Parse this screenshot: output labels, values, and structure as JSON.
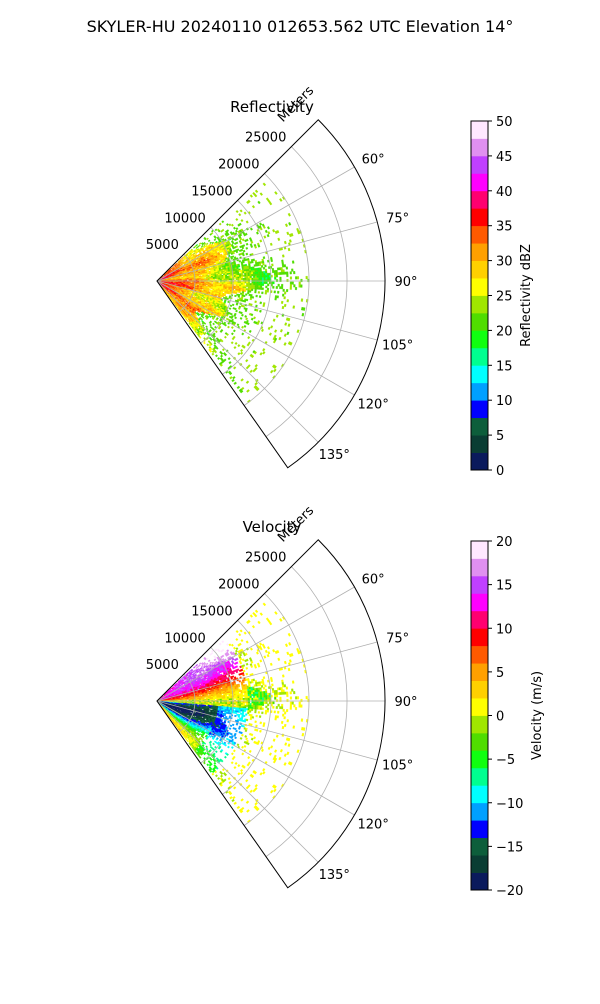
{
  "figure": {
    "title": "SKYLER-HU  20240110  012653.562 UTC Elevation 14°"
  },
  "chart_data": [
    {
      "type": "heatmap",
      "projection": "polar-sector",
      "title": "Reflectivity",
      "radial_label": "Meters",
      "radial_ticks": [
        5000,
        10000,
        15000,
        20000,
        25000
      ],
      "radial_tick_labels": [
        "5000",
        "10000",
        "15000",
        "20000",
        "25000"
      ],
      "rmax": 30000,
      "angle_ticks": [
        60,
        75,
        90,
        105,
        120,
        135
      ],
      "angle_tick_labels": [
        "60°",
        "75°",
        "90°",
        "105°",
        "120°",
        "135°"
      ],
      "azimuth_range": [
        45,
        145
      ],
      "data_extent_m": 20000,
      "grid": true,
      "colorbar": {
        "label": "Reflectivity dBZ",
        "min": 0,
        "max": 50,
        "ticks": [
          0,
          5,
          10,
          15,
          20,
          25,
          30,
          35,
          40,
          45,
          50
        ],
        "tick_labels": [
          "0",
          "5",
          "10",
          "15",
          "20",
          "25",
          "30",
          "35",
          "40",
          "45",
          "50"
        ],
        "colors": [
          "#0a1a5c",
          "#0a3d33",
          "#0d5e3b",
          "#0000ff",
          "#00a0ff",
          "#00ffff",
          "#00ff90",
          "#10ff10",
          "#50dd00",
          "#a0e600",
          "#ffff00",
          "#ffd000",
          "#ffa000",
          "#ff5a00",
          "#ff0000",
          "#ff0070",
          "#ff00ff",
          "#c040ff",
          "#e090f0",
          "#ffe8ff"
        ]
      }
    },
    {
      "type": "heatmap",
      "projection": "polar-sector",
      "title": "Velocity",
      "radial_label": "Meters",
      "radial_ticks": [
        5000,
        10000,
        15000,
        20000,
        25000
      ],
      "radial_tick_labels": [
        "5000",
        "10000",
        "15000",
        "20000",
        "25000"
      ],
      "rmax": 30000,
      "angle_ticks": [
        60,
        75,
        90,
        105,
        120,
        135
      ],
      "angle_tick_labels": [
        "60°",
        "75°",
        "90°",
        "105°",
        "120°",
        "135°"
      ],
      "azimuth_range": [
        45,
        145
      ],
      "data_extent_m": 20000,
      "grid": true,
      "colorbar": {
        "label": "Velocity (m/s)",
        "min": -20,
        "max": 20,
        "ticks": [
          -20,
          -15,
          -10,
          -5,
          0,
          5,
          10,
          15,
          20
        ],
        "tick_labels": [
          "−20",
          "−15",
          "−10",
          "−5",
          "0",
          "5",
          "10",
          "15",
          "20"
        ],
        "colors": [
          "#0a1a5c",
          "#0a3d33",
          "#0d5e3b",
          "#0000ff",
          "#00a0ff",
          "#00ffff",
          "#00ff90",
          "#10ff10",
          "#50dd00",
          "#a0e600",
          "#ffff00",
          "#ffd000",
          "#ffa000",
          "#ff5a00",
          "#ff0000",
          "#ff0070",
          "#ff00ff",
          "#c040ff",
          "#e090f0",
          "#ffe8ff"
        ]
      }
    }
  ]
}
